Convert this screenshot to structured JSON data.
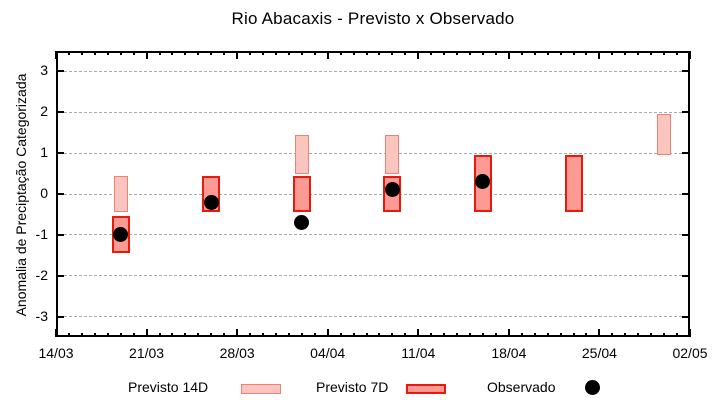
{
  "title": "Rio Abacaxis - Previsto x Observado",
  "ylabel": "Anomalia de Preciptação Categorizada",
  "legend": [
    {
      "label": "Previsto 14D",
      "swatch": "light-pink-box"
    },
    {
      "label": "Previsto 7D",
      "swatch": "red-box"
    },
    {
      "label": "Observado",
      "swatch": "black-dot"
    }
  ],
  "colors": {
    "previsto_14d_fill": "#f9c5be",
    "previsto_14d_border": "#f08274",
    "previsto_7d_fill": "#fd9a94",
    "previsto_7d_border": "#e91a0b",
    "observado": "#000000",
    "grid": "#aaaaaa",
    "axis": "#000000"
  },
  "chart_data": {
    "type": "bar",
    "subtype": "range-bars-with-scatter",
    "title": "Rio Abacaxis - Previsto x Observado",
    "xlabel": "",
    "ylabel": "Anomalia de Preciptação Categorizada",
    "x_tick_labels": [
      "14/03",
      "21/03",
      "28/03",
      "04/04",
      "11/04",
      "18/04",
      "25/04",
      "02/05"
    ],
    "x_major_tick_interval_days": 7,
    "x_minor_tick_interval_days": 1,
    "x_domain_days": [
      0,
      49
    ],
    "ylim": [
      -3.5,
      3.5
    ],
    "y_ticks": [
      -3,
      -2,
      -1,
      0,
      1,
      2,
      3
    ],
    "grid": "horizontal-dashed-at-integer-y",
    "legend_position": "below-bottom",
    "series": [
      {
        "name": "Previsto 14D",
        "type": "range-bar",
        "points": [
          {
            "date": "19/03",
            "day": 5,
            "low": -0.45,
            "high": 0.45
          },
          {
            "date": "02/04",
            "day": 19,
            "low": 0.5,
            "high": 1.45
          },
          {
            "date": "09/04",
            "day": 26,
            "low": 0.5,
            "high": 1.45
          },
          {
            "date": "30/04",
            "day": 47,
            "low": 0.95,
            "high": 1.95
          }
        ]
      },
      {
        "name": "Previsto 7D",
        "type": "range-bar",
        "points": [
          {
            "date": "19/03",
            "day": 5,
            "low": -1.45,
            "high": -0.55
          },
          {
            "date": "26/03",
            "day": 12,
            "low": -0.45,
            "high": 0.45
          },
          {
            "date": "02/04",
            "day": 19,
            "low": -0.45,
            "high": 0.45
          },
          {
            "date": "09/04",
            "day": 26,
            "low": -0.45,
            "high": 0.45
          },
          {
            "date": "16/04",
            "day": 33,
            "low": -0.45,
            "high": 0.95
          },
          {
            "date": "23/04",
            "day": 40,
            "low": -0.45,
            "high": 0.95
          }
        ]
      },
      {
        "name": "Observado",
        "type": "scatter",
        "points": [
          {
            "date": "19/03",
            "day": 5,
            "value": -1.0
          },
          {
            "date": "26/03",
            "day": 12,
            "value": -0.2
          },
          {
            "date": "02/04",
            "day": 19,
            "value": -0.7
          },
          {
            "date": "09/04",
            "day": 26,
            "value": 0.1
          },
          {
            "date": "16/04",
            "day": 33,
            "value": 0.3
          }
        ]
      }
    ]
  }
}
